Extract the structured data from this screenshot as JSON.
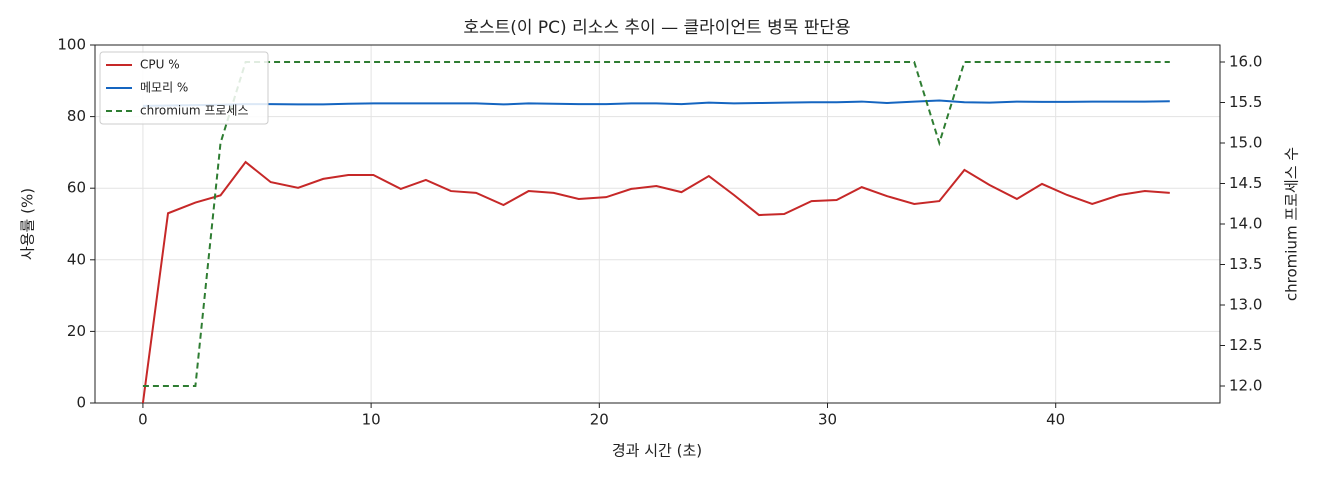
{
  "chart_data": {
    "type": "line",
    "title": "호스트(이 PC) 리소스 추이 — 클라이언트 병목 판단용",
    "x_label": "경과 시간 (초)",
    "y_label": "사용률 (%)",
    "y2_label": "chromium 프로세스 수",
    "x": [
      0,
      1.1,
      2.3,
      3.4,
      4.5,
      5.6,
      6.8,
      7.9,
      9,
      10.1,
      11.3,
      12.4,
      13.5,
      14.6,
      15.8,
      16.9,
      18,
      19.1,
      20.3,
      21.4,
      22.5,
      23.6,
      24.8,
      25.9,
      27,
      28.1,
      29.3,
      30.4,
      31.5,
      32.6,
      33.8,
      34.9,
      36,
      37.1,
      38.3,
      39.4,
      40.5,
      41.6,
      42.8,
      43.9,
      45
    ],
    "series": [
      {
        "name": "CPU %",
        "color": "#c62828",
        "dashed": false,
        "values": [
          0,
          53,
          56,
          58,
          67.3,
          61.7,
          60.1,
          62.6,
          63.7,
          63.7,
          59.8,
          62.3,
          59.2,
          58.7,
          55.3,
          59.2,
          58.7,
          57,
          57.5,
          59.8,
          60.6,
          58.9,
          63.4,
          58.1,
          52.5,
          52.8,
          56.4,
          56.7,
          60.3,
          57.8,
          55.6,
          56.4,
          65.1,
          60.9,
          57,
          61.2,
          58.1,
          55.6,
          58.1,
          59.2,
          58.7
        ]
      },
      {
        "name": "메모리 %",
        "color": "#1565c0",
        "dashed": false,
        "values": [
          83,
          83.1,
          83.2,
          83.3,
          83.5,
          83.5,
          83.4,
          83.4,
          83.6,
          83.7,
          83.7,
          83.7,
          83.7,
          83.7,
          83.4,
          83.7,
          83.6,
          83.5,
          83.5,
          83.7,
          83.7,
          83.5,
          83.9,
          83.7,
          83.8,
          83.9,
          84,
          84,
          84.2,
          83.8,
          84.2,
          84.5,
          84,
          83.9,
          84.2,
          84.1,
          84.1,
          84.2,
          84.2,
          84.2,
          84.3
        ]
      },
      {
        "name": "chromium 프로세스",
        "color": "#2e7d32",
        "dashed": true,
        "axis": "y2",
        "values": [
          12,
          12,
          12,
          15,
          16,
          16,
          16,
          16,
          16,
          16,
          16,
          16,
          16,
          16,
          16,
          16,
          16,
          16,
          16,
          16,
          16,
          16,
          16,
          16,
          16,
          16,
          16,
          16,
          16,
          16,
          16,
          15,
          16,
          16,
          16,
          16,
          16,
          16,
          16,
          16,
          16
        ]
      }
    ],
    "xlim": [
      -2.1,
      47.2
    ],
    "xticks": [
      0,
      10,
      20,
      30,
      40
    ],
    "ylim": [
      0,
      100
    ],
    "yticks": [
      0,
      20,
      40,
      60,
      80,
      100
    ],
    "y2lim": [
      11.79,
      16.21
    ],
    "y2ticks": [
      {
        "value": 12,
        "label": "12.0"
      },
      12.5,
      {
        "value": 13,
        "label": "13.0"
      },
      13.5,
      {
        "value": 14,
        "label": "14.0"
      },
      14.5,
      {
        "value": 15,
        "label": "15.0"
      },
      15.5,
      {
        "value": 16,
        "label": "16.0"
      }
    ],
    "grid": true,
    "legend": "upper left"
  }
}
